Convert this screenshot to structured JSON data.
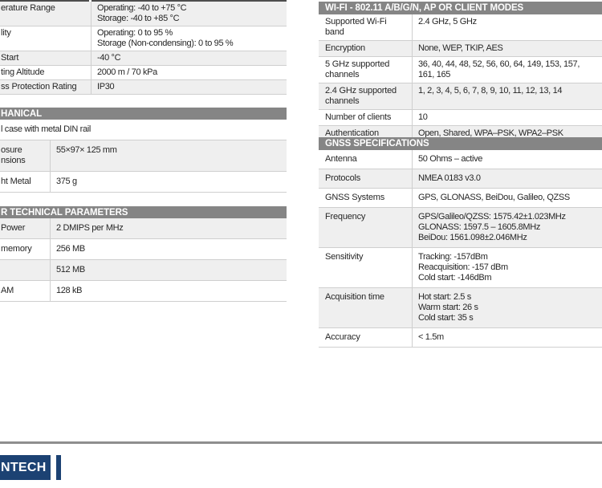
{
  "colors": {
    "header_bg": "#858585",
    "stripe": "#efefef",
    "border": "#cfcfcf",
    "topline": "#4d4d4d",
    "rule": "#8e8e8e",
    "logo_bg": "#1c4273",
    "text": "#262626"
  },
  "footer": {
    "logo_text": "NTECH"
  },
  "tables": {
    "environment": {
      "rows": [
        {
          "label": "erature Range",
          "value": "Operating: -40 to +75 °C\nStorage: -40 to +85 °C"
        },
        {
          "label": "lity",
          "value": "Operating: 0 to 95 %\nStorage (Non-condensing): 0 to 95 %"
        },
        {
          "label": "Start",
          "value": "-40 °C"
        },
        {
          "label": "ting Altitude",
          "value": "2000 m / 70 kPa"
        },
        {
          "label": "ss Protection Rating",
          "value": "IP30"
        }
      ]
    },
    "mechanical": {
      "header": "HANICAL",
      "full_row": "l case with metal DIN rail",
      "rows": [
        {
          "label": "osure\nnsions",
          "value": "55×97× 125 mm"
        },
        {
          "label": "ht Metal",
          "value": "375 g"
        }
      ]
    },
    "other": {
      "header": "R TECHNICAL PARAMETERS",
      "rows": [
        {
          "label": "Power",
          "value": "2 DMIPS per MHz"
        },
        {
          "label": "memory",
          "value": "256 MB"
        },
        {
          "label": "",
          "value": "512 MB"
        },
        {
          "label": "AM",
          "value": "128 kB"
        }
      ]
    },
    "wifi": {
      "header": "WI-FI - 802.11 A/B/G/N, AP OR CLIENT MODES",
      "rows": [
        {
          "label": "Supported Wi-Fi band",
          "value": "2.4 GHz, 5 GHz"
        },
        {
          "label": "Encryption",
          "value": "None, WEP, TKIP, AES"
        },
        {
          "label": "5 GHz supported channels",
          "value": "36, 40, 44, 48, 52, 56, 60, 64, 149, 153, 157, 161, 165"
        },
        {
          "label": "2.4 GHz supported channels",
          "value": "1, 2, 3, 4, 5, 6, 7, 8, 9, 10, 11, 12, 13, 14"
        },
        {
          "label": "Number of clients",
          "value": "10"
        },
        {
          "label": "Authentication",
          "value": "Open, Shared, WPA–PSK, WPA2–PSK"
        }
      ]
    },
    "gnss": {
      "header": "GNSS SPECIFICATIONS",
      "rows": [
        {
          "label": "Antenna",
          "value": "50 Ohms – active"
        },
        {
          "label": "Protocols",
          "value": "NMEA 0183 v3.0"
        },
        {
          "label": "GNSS Systems",
          "value": "GPS, GLONASS, BeiDou, Galileo, QZSS"
        },
        {
          "label": "Frequency",
          "value": "GPS/Galileo/QZSS: 1575.42±1.023MHz\nGLONASS: 1597.5 – 1605.8MHz\nBeiDou: 1561.098±2.046MHz"
        },
        {
          "label": "Sensitivity",
          "value": "Tracking: -157dBm\nReacquisition: -157 dBm\nCold start: -146dBm"
        },
        {
          "label": "Acquisition time",
          "value": "Hot start: 2.5 s\nWarm start: 26 s\nCold start: 35 s"
        },
        {
          "label": "Accuracy",
          "value": "< 1.5m"
        }
      ]
    }
  }
}
